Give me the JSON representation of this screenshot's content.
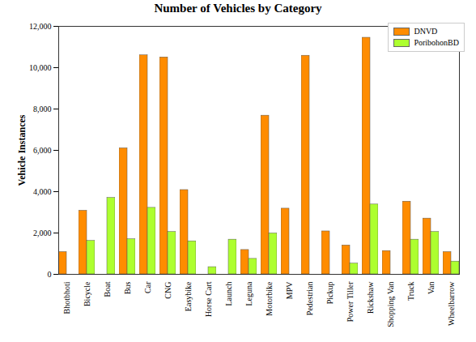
{
  "chart_data": {
    "type": "bar",
    "title": "Number of Vehicles by Category",
    "y_label": "Vehicle Instances",
    "categories": [
      "Bhotbhoti",
      "Bicycle",
      "Boat",
      "Bus",
      "Car",
      "CNG",
      "Easybike",
      "Horse Cart",
      "Launch",
      "Leguna",
      "Motorbike",
      "MPV",
      "Pedestrian",
      "Pickup",
      "Power Tiller",
      "Rickshaw",
      "Shopping Van",
      "Truck",
      "Van",
      "Wheelbarrow"
    ],
    "series": [
      {
        "name": "DNVD",
        "color": "#ff8c00",
        "values": [
          1080,
          3080,
          0,
          6100,
          10600,
          10500,
          4080,
          0,
          0,
          1180,
          7680,
          3180,
          10580,
          2080,
          1400,
          11450,
          1130,
          3520,
          2700,
          1080
        ]
      },
      {
        "name": "PoribohonBD",
        "color": "#adff2f",
        "values": [
          0,
          1620,
          3700,
          1700,
          3220,
          2050,
          1600,
          350,
          1680,
          750,
          1980,
          0,
          0,
          0,
          520,
          3380,
          0,
          1680,
          2050,
          620
        ]
      }
    ],
    "ylim": [
      0,
      12000
    ],
    "yticks": [
      0,
      2000,
      4000,
      6000,
      8000,
      10000,
      12000
    ],
    "grid": false,
    "legend": "top-right"
  }
}
